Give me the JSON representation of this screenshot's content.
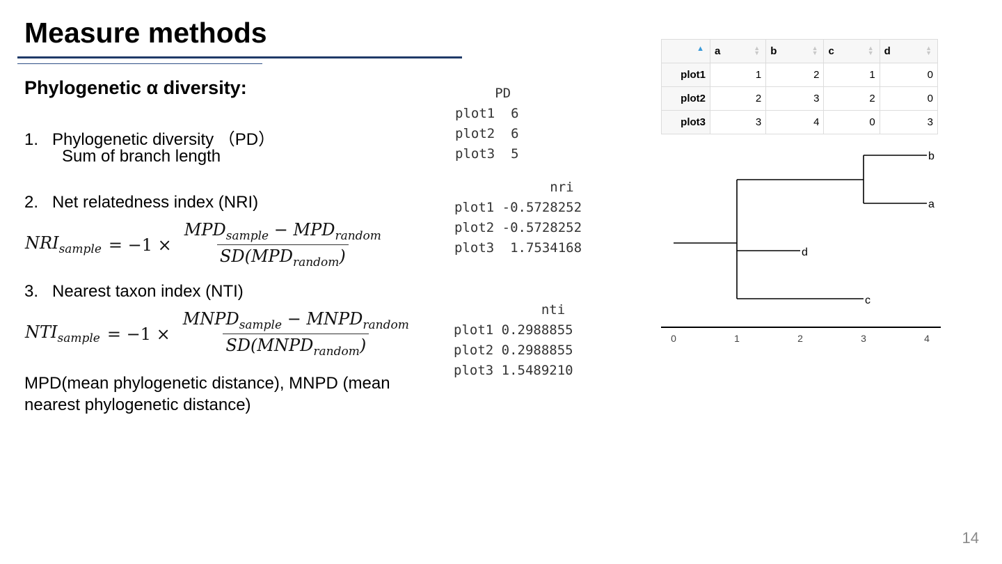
{
  "title": "Measure methods",
  "section": "Phylogenetic α diversity:",
  "items": [
    {
      "num": "1.",
      "label": "Phylogenetic diversity （PD）",
      "sub": "Sum of branch length"
    },
    {
      "num": "2.",
      "label": "Net relatedness index (NRI)"
    },
    {
      "num": "3.",
      "label": "Nearest taxon index (NTI)"
    }
  ],
  "formulas": {
    "nri": {
      "lhs": "NRI",
      "lhs_sub": "sample",
      "eq": "= −1 ×",
      "num_a": "MPD",
      "num_a_sub": "sample",
      "minus": "−",
      "num_b": "MPD",
      "num_b_sub": "random",
      "den_pre": "SD(",
      "den": "MPD",
      "den_sub": "random",
      "den_post": ")"
    },
    "nti": {
      "lhs": "NTI",
      "lhs_sub": "sample",
      "eq": "= −1 ×",
      "num_a": "MNPD",
      "num_a_sub": "sample",
      "minus": "−",
      "num_b": "MNPD",
      "num_b_sub": "random",
      "den_pre": "SD(",
      "den": "MNPD",
      "den_sub": "random",
      "den_post": ")"
    }
  },
  "footnote_line1": "MPD(mean phylogenetic distance), MNPD (mean",
  "footnote_line2": "nearest phylogenetic distance)",
  "output_pd": "     PD\nplot1  6\nplot2  6\nplot3  5",
  "output_nri": "            nri\nplot1 -0.5728252\nplot2 -0.5728252\nplot3  1.7534168",
  "output_nti": "           nti\nplot1 0.2988855\nplot2 0.2988855\nplot3 1.5489210",
  "table": {
    "columns": [
      "a",
      "b",
      "c",
      "d"
    ],
    "rows": [
      {
        "name": "plot1",
        "values": [
          "1",
          "2",
          "1",
          "0"
        ]
      },
      {
        "name": "plot2",
        "values": [
          "2",
          "3",
          "2",
          "0"
        ]
      },
      {
        "name": "plot3",
        "values": [
          "3",
          "4",
          "0",
          "3"
        ]
      }
    ]
  },
  "tree": {
    "tips": [
      "b",
      "a",
      "d",
      "c"
    ],
    "axis_ticks": [
      "0",
      "1",
      "2",
      "3",
      "4"
    ]
  },
  "page_number": "14"
}
